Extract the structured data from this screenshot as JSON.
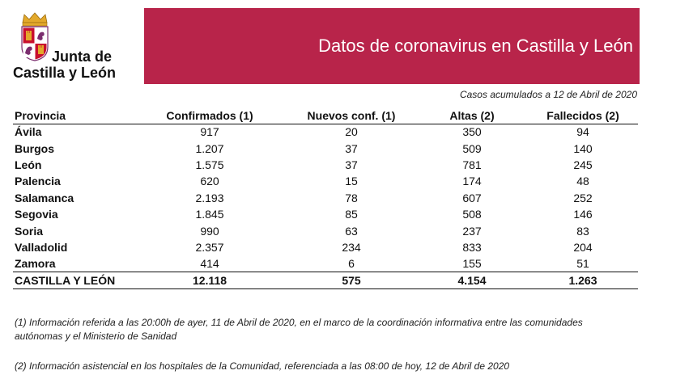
{
  "logo": {
    "line1": "Junta de",
    "line2": "Castilla y León",
    "colors": {
      "red": "#c8102e",
      "gold": "#e3a92b",
      "purple": "#7b2d6e"
    }
  },
  "banner": {
    "title": "Datos de coronavirus en Castilla y León",
    "color": "#b8244a"
  },
  "subtitle": "Casos acumulados a 12 de Abril de 2020",
  "table": {
    "headers": [
      "Provincia",
      "Confirmados (1)",
      "Nuevos conf. (1)",
      "Altas (2)",
      "Fallecidos (2)"
    ],
    "rows": [
      [
        "Ávila",
        "917",
        "20",
        "350",
        "94"
      ],
      [
        "Burgos",
        "1.207",
        "37",
        "509",
        "140"
      ],
      [
        "León",
        "1.575",
        "37",
        "781",
        "245"
      ],
      [
        "Palencia",
        "620",
        "15",
        "174",
        "48"
      ],
      [
        "Salamanca",
        "2.193",
        "78",
        "607",
        "252"
      ],
      [
        "Segovia",
        "1.845",
        "85",
        "508",
        "146"
      ],
      [
        "Soria",
        "990",
        "63",
        "237",
        "83"
      ],
      [
        "Valladolid",
        "2.357",
        "234",
        "833",
        "204"
      ],
      [
        "Zamora",
        "414",
        "6",
        "155",
        "51"
      ]
    ],
    "total": [
      "CASTILLA Y LEÓN",
      "12.118",
      "575",
      "4.154",
      "1.263"
    ]
  },
  "notes": {
    "note1": "(1) Información referida a las 20:00h de ayer, 11 de Abril de 2020, en el marco de la coordinación informativa entre las comunidades autónomas y el Ministerio de Sanidad",
    "note2": "(2) Información asistencial en los hospitales de la Comunidad, referenciada a las 08:00 de hoy, 12 de Abril de 2020"
  }
}
